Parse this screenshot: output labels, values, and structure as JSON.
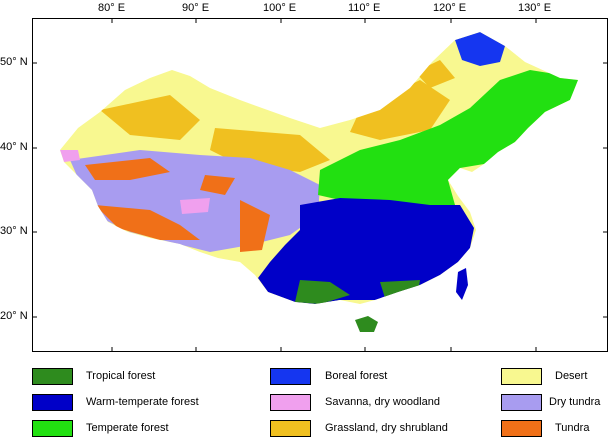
{
  "map": {
    "lon_labels": [
      "80° E",
      "90° E",
      "100° E",
      "110° E",
      "120° E",
      "130° E"
    ],
    "lat_labels": [
      "50° N",
      "40° N",
      "30° N",
      "20° N"
    ]
  },
  "legend": [
    {
      "label": "Tropical forest",
      "color": "#2e8b1e"
    },
    {
      "label": "Warm-temperate forest",
      "color": "#0000c8"
    },
    {
      "label": "Temperate forest",
      "color": "#22e011"
    },
    {
      "label": "Boreal forest",
      "color": "#1536f0"
    },
    {
      "label": "Savanna, dry woodland",
      "color": "#f0a0ee"
    },
    {
      "label": "Grassland, dry shrubland",
      "color": "#f0c020"
    },
    {
      "label": "Desert",
      "color": "#f8f890"
    },
    {
      "label": "Dry tundra",
      "color": "#a89cf0"
    },
    {
      "label": "Tundra",
      "color": "#f07018"
    }
  ]
}
